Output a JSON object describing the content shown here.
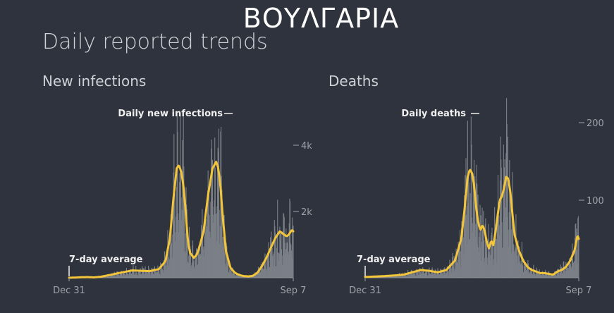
{
  "header": {
    "title": "ΒΟΥΛΓΑΡΙΑ",
    "subtitle": "Daily reported trends"
  },
  "colors": {
    "background": "#2e333d",
    "bars": "#7b7f86",
    "average_line": "#f2c53a",
    "axis": "#9ea3aa"
  },
  "chart_data": [
    {
      "type": "bar",
      "title": "New infections",
      "x_start": "Dec 31",
      "x_end": "Sep 7",
      "x_tick_labels": [
        "Dec 31",
        "Sep 7"
      ],
      "y_ticks": [
        2000,
        4000
      ],
      "y_tick_labels": [
        "2k",
        "4k"
      ],
      "ylim": [
        0,
        5000
      ],
      "bar_label": "Daily new infections",
      "average_label": "7-day average",
      "average_profile": {
        "days": [
          0,
          20,
          40,
          55,
          70,
          90,
          110,
          125,
          140,
          160,
          180,
          200,
          215,
          225,
          232,
          240,
          245,
          250,
          255,
          260,
          265,
          270,
          278,
          285,
          290,
          300,
          310,
          320,
          328,
          333,
          338,
          343,
          350,
          360,
          370,
          380,
          390,
          400,
          410,
          420,
          430,
          440,
          450,
          460,
          470,
          475,
          480,
          485,
          490,
          497,
          500
        ],
        "values": [
          0,
          10,
          20,
          10,
          30,
          80,
          140,
          180,
          220,
          210,
          200,
          260,
          500,
          1200,
          2300,
          3300,
          3400,
          3200,
          2800,
          2000,
          1100,
          750,
          600,
          700,
          900,
          1400,
          2500,
          3300,
          3500,
          3300,
          2700,
          1800,
          800,
          300,
          150,
          80,
          50,
          40,
          60,
          150,
          350,
          600,
          900,
          1200,
          1400,
          1350,
          1300,
          1250,
          1300,
          1450,
          1400
        ]
      }
    },
    {
      "type": "bar",
      "title": "Deaths",
      "x_start": "Dec 31",
      "x_end": "Sep 7",
      "x_tick_labels": [
        "Dec 31",
        "Sep 7"
      ],
      "y_ticks": [
        100,
        200
      ],
      "y_tick_labels": [
        "100",
        "200"
      ],
      "ylim": [
        0,
        220
      ],
      "bar_label": "Daily deaths",
      "average_label": "7-day average",
      "average_profile": {
        "days": [
          0,
          40,
          70,
          90,
          110,
          130,
          150,
          170,
          190,
          210,
          225,
          232,
          240,
          245,
          250,
          255,
          260,
          265,
          270,
          275,
          280,
          285,
          290,
          295,
          300,
          305,
          310,
          315,
          320,
          325,
          330,
          335,
          340,
          345,
          350,
          360,
          370,
          380,
          390,
          400,
          410,
          420,
          430,
          440,
          450,
          460,
          470,
          480,
          490,
          497,
          500
        ],
        "values": [
          1,
          2,
          3,
          4,
          7,
          10,
          9,
          7,
          10,
          22,
          50,
          85,
          130,
          140,
          135,
          120,
          90,
          70,
          62,
          68,
          60,
          45,
          38,
          48,
          42,
          58,
          80,
          100,
          105,
          115,
          130,
          128,
          110,
          80,
          55,
          35,
          22,
          14,
          10,
          8,
          6,
          6,
          5,
          4,
          8,
          10,
          14,
          22,
          35,
          55,
          50
        ]
      }
    }
  ]
}
